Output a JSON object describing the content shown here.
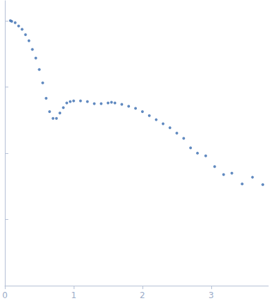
{
  "chart_data": {
    "type": "scatter",
    "log": "y",
    "tick_labels": "x",
    "grid": false,
    "color": "#3a6db0",
    "marker": "circle",
    "xlim": [
      0,
      3.83
    ],
    "xticks": [
      0,
      1,
      2,
      3
    ],
    "ylim": [
      0.0001,
      2
    ],
    "yticks": [
      0.001,
      0.01,
      0.1,
      1
    ],
    "x": [
      0.08,
      0.1,
      0.15,
      0.2,
      0.25,
      0.3,
      0.35,
      0.4,
      0.45,
      0.5,
      0.55,
      0.6,
      0.65,
      0.7,
      0.75,
      0.8,
      0.85,
      0.9,
      0.95,
      1.0,
      1.1,
      1.2,
      1.3,
      1.4,
      1.5,
      1.55,
      1.6,
      1.7,
      1.8,
      1.9,
      2.0,
      2.1,
      2.2,
      2.3,
      2.4,
      2.5,
      2.6,
      2.7,
      2.8,
      2.92,
      3.05,
      3.18,
      3.3,
      3.45,
      3.6,
      3.75
    ],
    "values": [
      1.0,
      0.977,
      0.933,
      0.83,
      0.739,
      0.614,
      0.498,
      0.368,
      0.272,
      0.183,
      0.115,
      0.0673,
      0.0423,
      0.0335,
      0.0335,
      0.0404,
      0.0486,
      0.0573,
      0.06,
      0.0614,
      0.0614,
      0.06,
      0.0559,
      0.0559,
      0.0573,
      0.0586,
      0.0573,
      0.0546,
      0.0509,
      0.0475,
      0.0423,
      0.0368,
      0.032,
      0.0278,
      0.0242,
      0.0201,
      0.0167,
      0.012,
      0.01,
      0.0091,
      0.00628,
      0.00475,
      0.00498,
      0.00343,
      0.00433,
      0.00335
    ]
  }
}
